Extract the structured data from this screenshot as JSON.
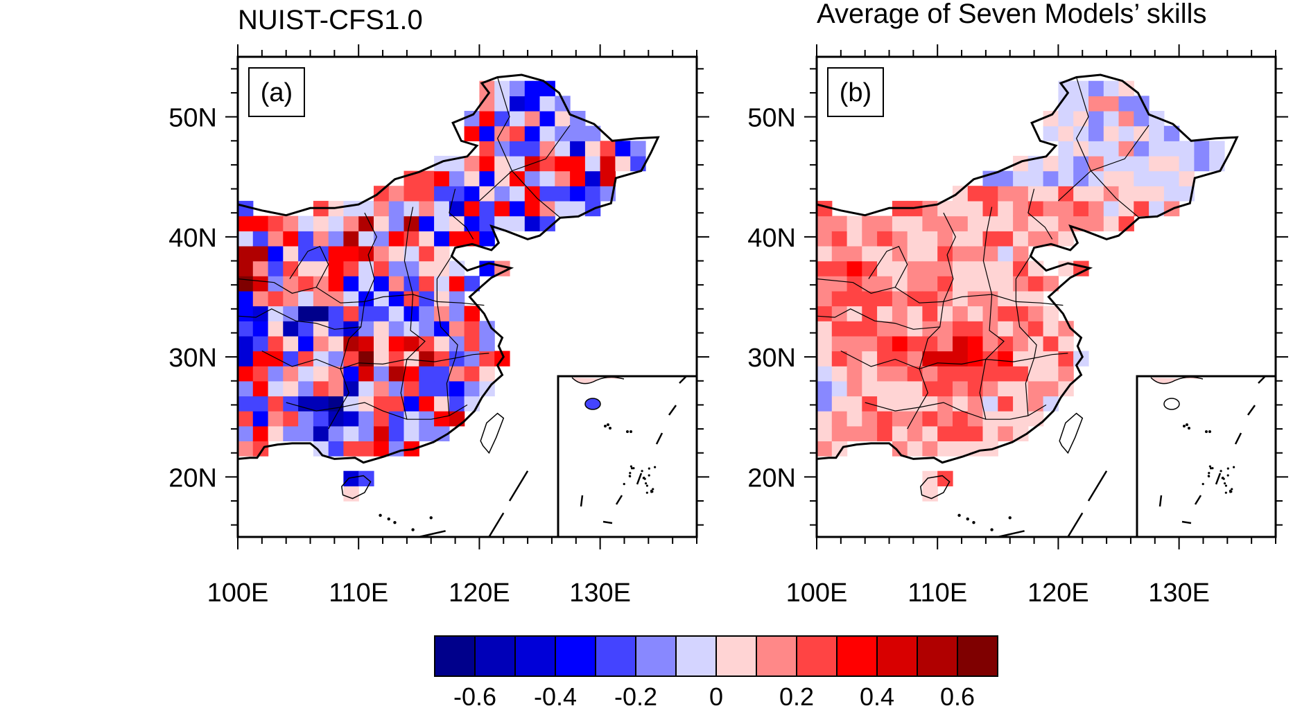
{
  "panels": [
    {
      "id": "a",
      "title": "NUIST-CFS1.0",
      "label": "(a)"
    },
    {
      "id": "b",
      "title": "Average of Seven Models’ skills",
      "label": "(b)"
    }
  ],
  "axes": {
    "lat_ticks": [
      {
        "value": 50,
        "label": "50N"
      },
      {
        "value": 40,
        "label": "40N"
      },
      {
        "value": 30,
        "label": "30N"
      },
      {
        "value": 20,
        "label": "20N"
      }
    ],
    "lon_ticks": [
      {
        "value": 100,
        "label": "100E"
      },
      {
        "value": 110,
        "label": "110E"
      },
      {
        "value": 120,
        "label": "120E"
      },
      {
        "value": 130,
        "label": "130E"
      }
    ],
    "lon_range": [
      100,
      138
    ],
    "lat_range": [
      15,
      55
    ]
  },
  "colorbar": {
    "colors": [
      "#00008b",
      "#0000b8",
      "#0000d8",
      "#0000ff",
      "#4444ff",
      "#8888ff",
      "#d4d4ff",
      "#ffd4d4",
      "#ff8888",
      "#ff4444",
      "#ff0000",
      "#d80000",
      "#b00000",
      "#7f0000"
    ],
    "labels": [
      "-0.6",
      "-0.4",
      "-0.2",
      "0",
      "0.2",
      "0.4",
      "0.6"
    ]
  },
  "chart_data": {
    "type": "heatmap",
    "description_free": true,
    "xlim": [
      100,
      138
    ],
    "ylim": [
      15,
      55
    ],
    "value_range": [
      -0.7,
      0.7
    ]
  }
}
